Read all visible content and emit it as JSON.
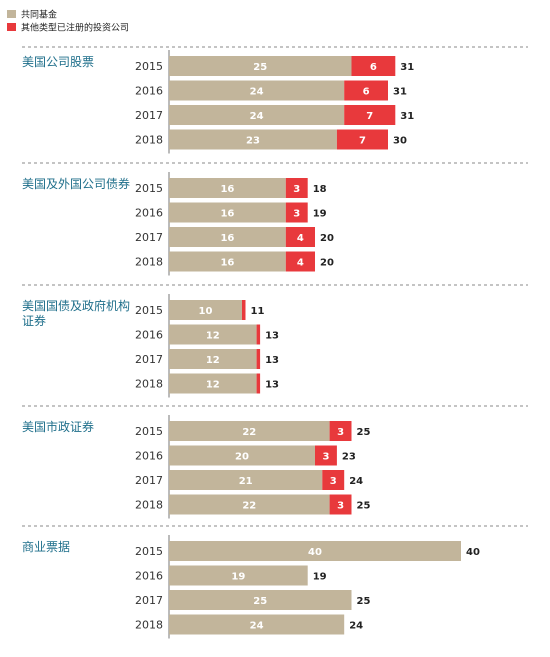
{
  "colors": {
    "mutual": "#c2b59b",
    "other": "#e8393c",
    "divider": "#888888",
    "group_label": "#1f6f8b",
    "axis": "#777777"
  },
  "chart_data": {
    "type": "bar",
    "orientation": "horizontal",
    "stacked": true,
    "title": "",
    "xlabel": "",
    "ylabel": "",
    "xlim": [
      0,
      40
    ],
    "grid": false,
    "legend": {
      "placement": "top-left",
      "entries": [
        {
          "name": "共同基金",
          "color": "#c2b59b"
        },
        {
          "name": "其他类型已注册的投资公司",
          "color": "#e8393c"
        }
      ]
    },
    "groups": [
      {
        "name": "美国公司股票",
        "rows": [
          {
            "year": "2015",
            "mutual": 25,
            "other": 6,
            "total": 31
          },
          {
            "year": "2016",
            "mutual": 24,
            "other": 6,
            "total": 31
          },
          {
            "year": "2017",
            "mutual": 24,
            "other": 7,
            "total": 31
          },
          {
            "year": "2018",
            "mutual": 23,
            "other": 7,
            "total": 30
          }
        ]
      },
      {
        "name": "美国及外国公司债券",
        "rows": [
          {
            "year": "2015",
            "mutual": 16,
            "other": 3,
            "total": 18
          },
          {
            "year": "2016",
            "mutual": 16,
            "other": 3,
            "total": 19
          },
          {
            "year": "2017",
            "mutual": 16,
            "other": 4,
            "total": 20
          },
          {
            "year": "2018",
            "mutual": 16,
            "other": 4,
            "total": 20
          }
        ]
      },
      {
        "name": "美国国债及政府机构证券",
        "rows": [
          {
            "year": "2015",
            "mutual": 10,
            "other": null,
            "total": 11
          },
          {
            "year": "2016",
            "mutual": 12,
            "other": null,
            "total": 13
          },
          {
            "year": "2017",
            "mutual": 12,
            "other": null,
            "total": 13
          },
          {
            "year": "2018",
            "mutual": 12,
            "other": null,
            "total": 13
          }
        ]
      },
      {
        "name": "美国市政证券",
        "rows": [
          {
            "year": "2015",
            "mutual": 22,
            "other": 3,
            "total": 25
          },
          {
            "year": "2016",
            "mutual": 20,
            "other": 3,
            "total": 23
          },
          {
            "year": "2017",
            "mutual": 21,
            "other": 3,
            "total": 24
          },
          {
            "year": "2018",
            "mutual": 22,
            "other": 3,
            "total": 25
          }
        ]
      },
      {
        "name": "商业票据",
        "rows": [
          {
            "year": "2015",
            "mutual": 40,
            "other": null,
            "total": 40
          },
          {
            "year": "2016",
            "mutual": 19,
            "other": null,
            "total": 19
          },
          {
            "year": "2017",
            "mutual": 25,
            "other": null,
            "total": 25
          },
          {
            "year": "2018",
            "mutual": 24,
            "other": null,
            "total": 24
          }
        ]
      }
    ]
  }
}
